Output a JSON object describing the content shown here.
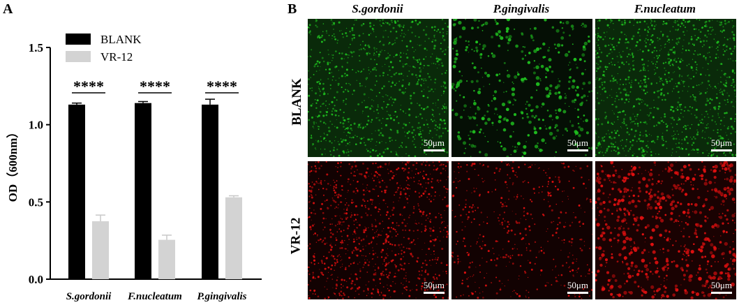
{
  "panel_a": {
    "letter": "A"
  },
  "panel_b": {
    "letter": "B",
    "columns": [
      "S.gordonii",
      "P.gingivalis",
      "F.nucleatum"
    ],
    "rows": [
      "BLANK",
      "VR-12"
    ],
    "scale_bar": "50μm",
    "row_colors": {
      "BLANK": "#1fbf1f",
      "VR-12": "#e01010"
    }
  },
  "chart_data": {
    "type": "bar",
    "categories": [
      "S.gordonii",
      "F.nucleatum",
      "P.gingivalis"
    ],
    "series": [
      {
        "name": "BLANK",
        "values": [
          1.13,
          1.14,
          1.13
        ],
        "errors": [
          0.01,
          0.01,
          0.035
        ],
        "color": "#000000"
      },
      {
        "name": "VR-12",
        "values": [
          0.375,
          0.255,
          0.53
        ],
        "errors": [
          0.04,
          0.03,
          0.01
        ],
        "color": "#d3d3d3"
      }
    ],
    "significance": [
      "****",
      "****",
      "****"
    ],
    "ylabel": "OD（600nm）",
    "xlabel": "",
    "ylim": [
      0,
      1.5
    ],
    "yticks": [
      "0.0",
      "0.5",
      "1.0",
      "1.5"
    ],
    "legend_position": "top-left"
  }
}
